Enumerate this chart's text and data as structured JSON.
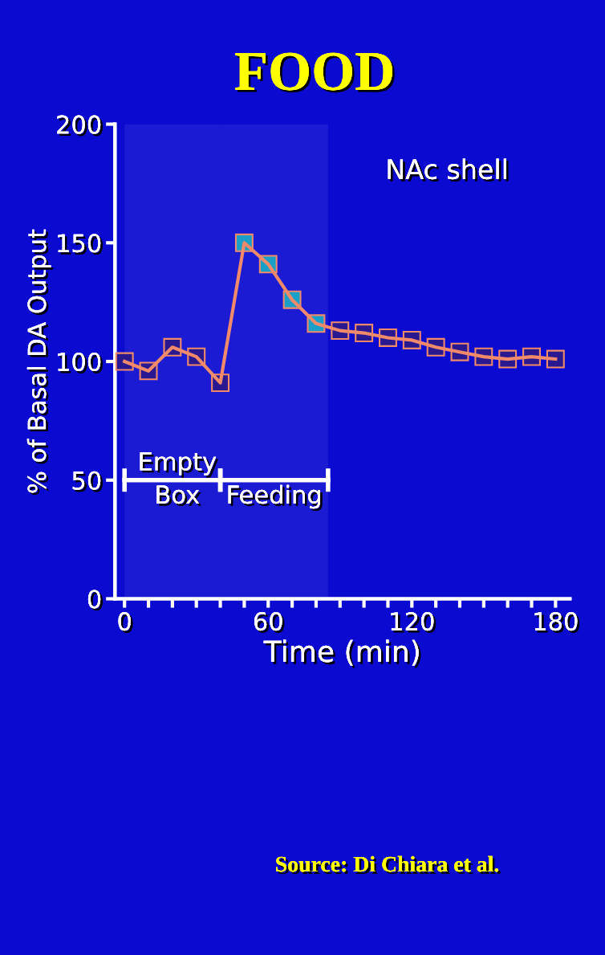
{
  "chart_data": {
    "type": "line",
    "title": "FOOD",
    "xlabel": "Time (min)",
    "ylabel": "% of Basal DA Output",
    "x": [
      0,
      10,
      20,
      30,
      40,
      50,
      60,
      70,
      80,
      90,
      100,
      110,
      120,
      130,
      140,
      150,
      160,
      170,
      180
    ],
    "series": [
      {
        "color": "#f08a6a",
        "values": [
          100,
          96,
          106,
          102,
          91,
          150,
          141,
          126,
          116,
          113,
          112,
          110,
          109,
          106,
          104,
          102,
          101,
          102,
          101
        ],
        "colors": [
          "#2a1890",
          "#2a1890",
          "#2a1890",
          "#2a1890",
          "#2a1890",
          "#1aa0c8",
          "#1aa0c8",
          "#1aa0c8",
          "#1aa0c8",
          "#2a1890",
          "#2a1890",
          "#2a1890",
          "#2a1890",
          "#2a1890",
          "#2a1890",
          "#2a1890",
          "#2a1890",
          "#2a1890",
          "#2a1890"
        ]
      }
    ],
    "marker": "square",
    "line_style": "solid",
    "xlim": [
      -4,
      186
    ],
    "ylim": [
      0,
      200
    ],
    "xticks": [
      0,
      {
        "value": 10,
        "label": null
      },
      {
        "value": 20,
        "label": null
      },
      {
        "value": 30,
        "label": null
      },
      {
        "value": 40,
        "label": null
      },
      {
        "value": 50,
        "label": null
      },
      60,
      {
        "value": 70,
        "label": null
      },
      {
        "value": 80,
        "label": null
      },
      {
        "value": 90,
        "label": null
      },
      {
        "value": 100,
        "label": null
      },
      {
        "value": 110,
        "label": null
      },
      120,
      {
        "value": 130,
        "label": null
      },
      {
        "value": 140,
        "label": null
      },
      {
        "value": 150,
        "label": null
      },
      {
        "value": 160,
        "label": null
      },
      {
        "value": 170,
        "label": null
      },
      180
    ],
    "yticks": [
      0,
      50,
      100,
      150,
      200
    ],
    "bands": [
      {
        "axis": "x",
        "from": 0,
        "to": 40,
        "label": "Empty Box",
        "color": "#ffffff"
      },
      {
        "axis": "x",
        "from": 40,
        "to": 85,
        "label": "Feeding",
        "color": "#ffffff"
      }
    ],
    "annotations": [
      "NAc shell",
      "Source: Di Chiara et al."
    ],
    "grid": false,
    "legend": false
  }
}
